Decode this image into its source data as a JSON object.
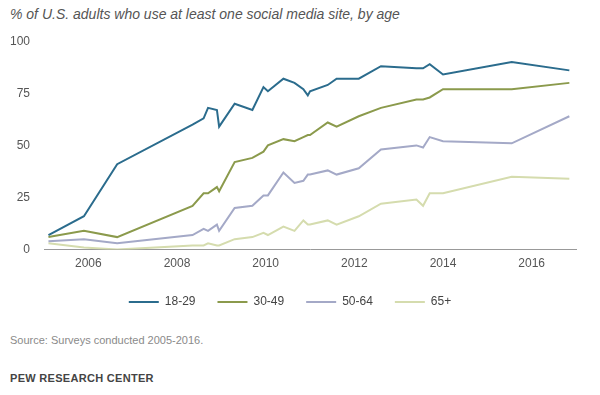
{
  "chart_data": {
    "type": "line",
    "title": "% of U.S. adults who use at least one social media site, by age",
    "source": "Source: Surveys conducted 2005-2016.",
    "credit": "PEW RESEARCH CENTER",
    "x": [
      2005.1,
      2005.9,
      2006.65,
      2008.35,
      2008.6,
      2008.7,
      2008.9,
      2008.95,
      2009.3,
      2009.7,
      2009.95,
      2010.05,
      2010.4,
      2010.65,
      2010.85,
      2010.95,
      2011.0,
      2011.4,
      2011.6,
      2012.1,
      2012.6,
      2013.4,
      2013.55,
      2013.7,
      2014.0,
      2015.55,
      2016.85
    ],
    "series": [
      {
        "name": "18-29",
        "color": "#2b6c8d",
        "values": [
          7,
          16,
          41,
          60,
          63,
          68,
          67,
          59,
          70,
          67,
          78,
          76,
          82,
          80,
          77,
          74,
          76,
          79,
          82,
          82,
          88,
          87,
          87,
          89,
          84,
          90,
          86
        ]
      },
      {
        "name": "30-49",
        "color": "#8b9a4c",
        "values": [
          6,
          9,
          6,
          21,
          27,
          27,
          30,
          28,
          42,
          44,
          47,
          50,
          53,
          52,
          54,
          55,
          55,
          61,
          59,
          64,
          68,
          72,
          72,
          73,
          77,
          77,
          80
        ]
      },
      {
        "name": "50-64",
        "color": "#a4a9c7",
        "values": [
          4,
          5,
          3,
          7,
          10,
          9,
          12,
          9,
          20,
          21,
          26,
          26,
          37,
          32,
          33,
          36,
          36,
          38,
          36,
          39,
          48,
          50,
          49,
          54,
          52,
          51,
          64
        ]
      },
      {
        "name": "65+",
        "color": "#d5dcae",
        "values": [
          3,
          1,
          0,
          2,
          2,
          3,
          2,
          2,
          5,
          6,
          8,
          7,
          11,
          9,
          14,
          12,
          12,
          14,
          12,
          16,
          22,
          24,
          21,
          27,
          27,
          35,
          34
        ]
      }
    ],
    "xlim": [
      2005,
      2017
    ],
    "xticks": [
      2006,
      2008,
      2010,
      2012,
      2014,
      2016
    ],
    "ylim": [
      0,
      100
    ],
    "yticks": [
      0,
      25,
      50,
      75,
      100
    ],
    "grid": false,
    "legend": "bottom"
  }
}
